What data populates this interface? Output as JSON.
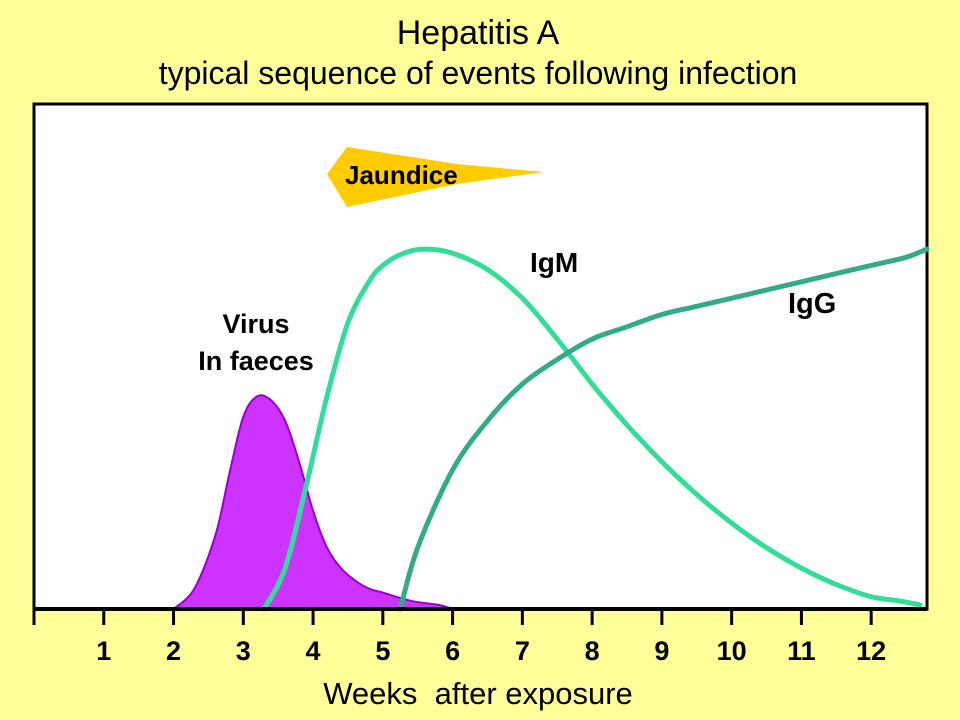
{
  "chart_data": {
    "type": "area",
    "title": "Hepatitis A",
    "subtitle": "typical sequence of events following infection",
    "xlabel": "Weeks  after exposure",
    "ylabel": "",
    "xlim": [
      0,
      12.8
    ],
    "ylim": [
      0,
      100
    ],
    "x_ticks": [
      1,
      2,
      3,
      4,
      5,
      6,
      7,
      8,
      9,
      10,
      11,
      12
    ],
    "grid": false,
    "colors": {
      "background": "#ffff99",
      "plot_background": "#ffffff",
      "virus": "#cc33ff",
      "igm": "#33dd99",
      "igg": "#33aa88",
      "jaundice": "#ffcc00"
    },
    "jaundice": {
      "label": "Jaundice",
      "start_week": 4.2,
      "end_week": 7.3
    },
    "series": [
      {
        "name": "Virus\nIn faeces",
        "label_lines": [
          "Virus",
          "In faeces"
        ],
        "kind": "filled",
        "x": [
          2.0,
          2.3,
          2.6,
          2.8,
          3.0,
          3.2,
          3.4,
          3.6,
          3.8,
          4.0,
          4.2,
          4.4,
          4.6,
          4.8,
          5.0,
          5.4,
          5.8,
          6.0
        ],
        "y": [
          0,
          5,
          18,
          33,
          47,
          52,
          51,
          46,
          36,
          24,
          15,
          10,
          7,
          5,
          4,
          2,
          1,
          0
        ]
      },
      {
        "name": "IgM",
        "kind": "line",
        "x": [
          3.3,
          3.6,
          3.9,
          4.2,
          4.5,
          4.8,
          5.0,
          5.3,
          5.6,
          6.0,
          6.5,
          7.0,
          7.5,
          8.0,
          8.5,
          9.0,
          9.5,
          10.0,
          10.5,
          11.0,
          11.5,
          12.0,
          12.4,
          12.7
        ],
        "y": [
          0,
          10,
          30,
          52,
          70,
          80,
          84,
          87,
          88,
          87,
          83,
          76,
          66,
          55,
          45,
          36,
          28,
          21,
          15,
          10,
          6,
          3,
          2,
          1
        ]
      },
      {
        "name": "IgG",
        "kind": "line",
        "x": [
          5.25,
          5.5,
          6.0,
          6.5,
          7.0,
          7.5,
          8.0,
          8.5,
          9.0,
          9.5,
          10.0,
          10.5,
          11.0,
          11.5,
          12.0,
          12.5,
          12.8
        ],
        "y": [
          0,
          15,
          34,
          46,
          55,
          61,
          66,
          69,
          72,
          74,
          76,
          78,
          80,
          82,
          84,
          86,
          88
        ]
      }
    ]
  }
}
